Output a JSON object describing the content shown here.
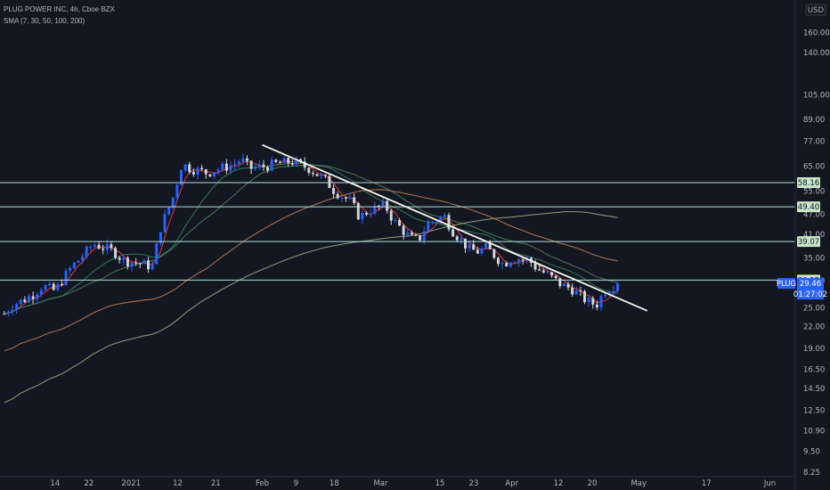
{
  "header": {
    "symbol_line": "PLUG POWER INC, 4h, Cboe BZX",
    "indicator_line": "SMA (7, 30, 50, 100, 200)"
  },
  "currency_badge": "USD",
  "colors": {
    "background": "#131722",
    "candle_up": "#2962ff",
    "candle_down": "#d1d4dc",
    "sma7": "#e53935",
    "sma30": "#2e7d5b",
    "sma50": "#4a7a4e",
    "sma100": "#b8764a",
    "sma200": "#8fa37a",
    "trendline": "#f5f5e8",
    "hline": "#b2dfdb",
    "label_bg": "#c8e6c9",
    "price_tag": "#2962ff"
  },
  "price_tag": {
    "symbol": "PLUG",
    "price": "29.46",
    "countdown": "01:27:02"
  },
  "chart_data": {
    "type": "candlestick",
    "title": "PLUG POWER INC, 4h, Cboe BZX",
    "y_scale": "log",
    "ylim": [
      8.0,
      190.0
    ],
    "y_ticks": [
      {
        "value": 160,
        "label": "160.00"
      },
      {
        "value": 140,
        "label": "140.00"
      },
      {
        "value": 105,
        "label": "105.00"
      },
      {
        "value": 89,
        "label": "89.00"
      },
      {
        "value": 77,
        "label": "77.00"
      },
      {
        "value": 65,
        "label": "65.00"
      },
      {
        "value": 55,
        "label": "55.00"
      },
      {
        "value": 47,
        "label": "47.00"
      },
      {
        "value": 41,
        "label": "41.00"
      },
      {
        "value": 35,
        "label": "35.00"
      },
      {
        "value": 30,
        "label": "30.00"
      },
      {
        "value": 25,
        "label": "25.00"
      },
      {
        "value": 22,
        "label": "22.00"
      },
      {
        "value": 19,
        "label": "19.00"
      },
      {
        "value": 16.5,
        "label": "16.50"
      },
      {
        "value": 14.5,
        "label": "14.50"
      },
      {
        "value": 12.5,
        "label": "12.50"
      },
      {
        "value": 10.9,
        "label": "10.90"
      },
      {
        "value": 9.5,
        "label": "9.50"
      },
      {
        "value": 8.25,
        "label": "8.25"
      }
    ],
    "x_range": [
      "2020-12-01",
      "2021-06-07"
    ],
    "x_ticks": [
      {
        "date": "2020-12-14",
        "label": "14"
      },
      {
        "date": "2020-12-22",
        "label": "22"
      },
      {
        "date": "2021-01-01",
        "label": "2021"
      },
      {
        "date": "2021-01-12",
        "label": "12"
      },
      {
        "date": "2021-01-21",
        "label": "21"
      },
      {
        "date": "2021-02-01",
        "label": "Feb"
      },
      {
        "date": "2021-02-09",
        "label": "9"
      },
      {
        "date": "2021-02-18",
        "label": "18"
      },
      {
        "date": "2021-03-01",
        "label": "Mar"
      },
      {
        "date": "2021-03-15",
        "label": "15"
      },
      {
        "date": "2021-03-23",
        "label": "23"
      },
      {
        "date": "2021-04-01",
        "label": "Apr"
      },
      {
        "date": "2021-04-12",
        "label": "12"
      },
      {
        "date": "2021-04-20",
        "label": "20"
      },
      {
        "date": "2021-05-01",
        "label": "May"
      },
      {
        "date": "2021-05-17",
        "label": "17"
      },
      {
        "date": "2021-06-01",
        "label": "Jun"
      }
    ],
    "closes": [
      {
        "date": "2020-12-02",
        "c": 24.0
      },
      {
        "date": "2020-12-04",
        "c": 25.5
      },
      {
        "date": "2020-12-07",
        "c": 26.5
      },
      {
        "date": "2020-12-09",
        "c": 27.5
      },
      {
        "date": "2020-12-11",
        "c": 29.0
      },
      {
        "date": "2020-12-14",
        "c": 28.0
      },
      {
        "date": "2020-12-16",
        "c": 30.5
      },
      {
        "date": "2020-12-18",
        "c": 33.0
      },
      {
        "date": "2020-12-21",
        "c": 36.0
      },
      {
        "date": "2020-12-23",
        "c": 38.5
      },
      {
        "date": "2020-12-28",
        "c": 36.5
      },
      {
        "date": "2020-12-30",
        "c": 34.5
      },
      {
        "date": "2021-01-04",
        "c": 33.5
      },
      {
        "date": "2021-01-06",
        "c": 33.0
      },
      {
        "date": "2021-01-08",
        "c": 43.0
      },
      {
        "date": "2021-01-11",
        "c": 53.0
      },
      {
        "date": "2021-01-13",
        "c": 66.0
      },
      {
        "date": "2021-01-15",
        "c": 64.0
      },
      {
        "date": "2021-01-19",
        "c": 62.0
      },
      {
        "date": "2021-01-21",
        "c": 63.5
      },
      {
        "date": "2021-01-25",
        "c": 65.5
      },
      {
        "date": "2021-01-27",
        "c": 68.0
      },
      {
        "date": "2021-01-29",
        "c": 64.0
      },
      {
        "date": "2021-02-02",
        "c": 65.0
      },
      {
        "date": "2021-02-04",
        "c": 66.0
      },
      {
        "date": "2021-02-08",
        "c": 67.0
      },
      {
        "date": "2021-02-10",
        "c": 65.5
      },
      {
        "date": "2021-02-12",
        "c": 64.0
      },
      {
        "date": "2021-02-16",
        "c": 59.0
      },
      {
        "date": "2021-02-18",
        "c": 55.0
      },
      {
        "date": "2021-02-22",
        "c": 51.0
      },
      {
        "date": "2021-02-24",
        "c": 46.0
      },
      {
        "date": "2021-02-26",
        "c": 48.0
      },
      {
        "date": "2021-03-02",
        "c": 50.0
      },
      {
        "date": "2021-03-04",
        "c": 45.0
      },
      {
        "date": "2021-03-08",
        "c": 40.0
      },
      {
        "date": "2021-03-10",
        "c": 39.5
      },
      {
        "date": "2021-03-12",
        "c": 44.0
      },
      {
        "date": "2021-03-16",
        "c": 46.5
      },
      {
        "date": "2021-03-18",
        "c": 42.0
      },
      {
        "date": "2021-03-22",
        "c": 37.0
      },
      {
        "date": "2021-03-24",
        "c": 36.5
      },
      {
        "date": "2021-03-26",
        "c": 37.5
      },
      {
        "date": "2021-03-30",
        "c": 33.5
      },
      {
        "date": "2021-04-01",
        "c": 35.0
      },
      {
        "date": "2021-04-05",
        "c": 34.5
      },
      {
        "date": "2021-04-07",
        "c": 32.5
      },
      {
        "date": "2021-04-09",
        "c": 31.5
      },
      {
        "date": "2021-04-13",
        "c": 29.0
      },
      {
        "date": "2021-04-15",
        "c": 28.5
      },
      {
        "date": "2021-04-19",
        "c": 26.0
      },
      {
        "date": "2021-04-21",
        "c": 25.5
      },
      {
        "date": "2021-04-23",
        "c": 28.0
      },
      {
        "date": "2021-04-26",
        "c": 29.46
      }
    ],
    "trendline": {
      "start": {
        "date": "2021-02-01",
        "price": 75.0
      },
      "end": {
        "date": "2021-05-03",
        "price": 24.5
      }
    },
    "horizontal_levels": [
      {
        "value": 58.16,
        "label": "58.16"
      },
      {
        "value": 49.4,
        "label": "49.40"
      },
      {
        "value": 39.07,
        "label": "39.07"
      },
      {
        "value": 30.12,
        "label": "30.12"
      }
    ],
    "sma_series": [
      {
        "name": "SMA 7"
      },
      {
        "name": "SMA 30"
      },
      {
        "name": "SMA 50"
      },
      {
        "name": "SMA 100"
      },
      {
        "name": "SMA 200"
      }
    ]
  }
}
